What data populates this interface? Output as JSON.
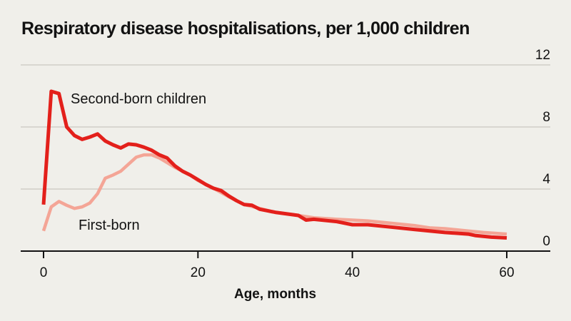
{
  "chart_data": {
    "type": "line",
    "title": "Respiratory disease hospitalisations, per 1,000 children",
    "xlabel": "Age, months",
    "ylabel": "",
    "xlim": [
      0,
      60
    ],
    "ylim": [
      0,
      12
    ],
    "xticks": [
      0,
      20,
      40,
      60
    ],
    "yticks": [
      0,
      4,
      8,
      12
    ],
    "grid": "horizontal",
    "series": [
      {
        "name": "First-born",
        "color": "#f4a596",
        "x": [
          0,
          1,
          2,
          3,
          4,
          5,
          6,
          7,
          8,
          9,
          10,
          11,
          12,
          13,
          14,
          15,
          16,
          17,
          18,
          19,
          20,
          22,
          24,
          26,
          28,
          30,
          33,
          35,
          38,
          40,
          42,
          45,
          48,
          50,
          52,
          55,
          57,
          60
        ],
        "y": [
          1.3,
          2.85,
          3.2,
          2.95,
          2.75,
          2.85,
          3.1,
          3.7,
          4.7,
          4.9,
          5.15,
          5.6,
          6.05,
          6.2,
          6.2,
          6.0,
          5.7,
          5.4,
          5.15,
          4.9,
          4.55,
          4.05,
          3.5,
          3.0,
          2.75,
          2.5,
          2.3,
          2.15,
          2.05,
          2.0,
          1.95,
          1.8,
          1.65,
          1.5,
          1.45,
          1.3,
          1.2,
          1.1
        ]
      },
      {
        "name": "Second-born children",
        "color": "#e3201b",
        "x": [
          0,
          1,
          2,
          3,
          4,
          5,
          6,
          7,
          8,
          9,
          10,
          11,
          12,
          13,
          14,
          15,
          16,
          17,
          18,
          19,
          20,
          21,
          22,
          23,
          24,
          25,
          26,
          27,
          28,
          29,
          30,
          33,
          34,
          35,
          38,
          40,
          42,
          45,
          48,
          50,
          52,
          55,
          56,
          58,
          60
        ],
        "y": [
          3.0,
          10.3,
          10.15,
          8.0,
          7.45,
          7.2,
          7.35,
          7.55,
          7.1,
          6.85,
          6.65,
          6.9,
          6.85,
          6.7,
          6.5,
          6.2,
          6.0,
          5.5,
          5.15,
          4.9,
          4.6,
          4.3,
          4.05,
          3.9,
          3.55,
          3.25,
          3.0,
          2.95,
          2.7,
          2.6,
          2.5,
          2.3,
          2.0,
          2.05,
          1.9,
          1.7,
          1.7,
          1.55,
          1.4,
          1.3,
          1.2,
          1.1,
          1.0,
          0.9,
          0.85
        ]
      }
    ]
  }
}
